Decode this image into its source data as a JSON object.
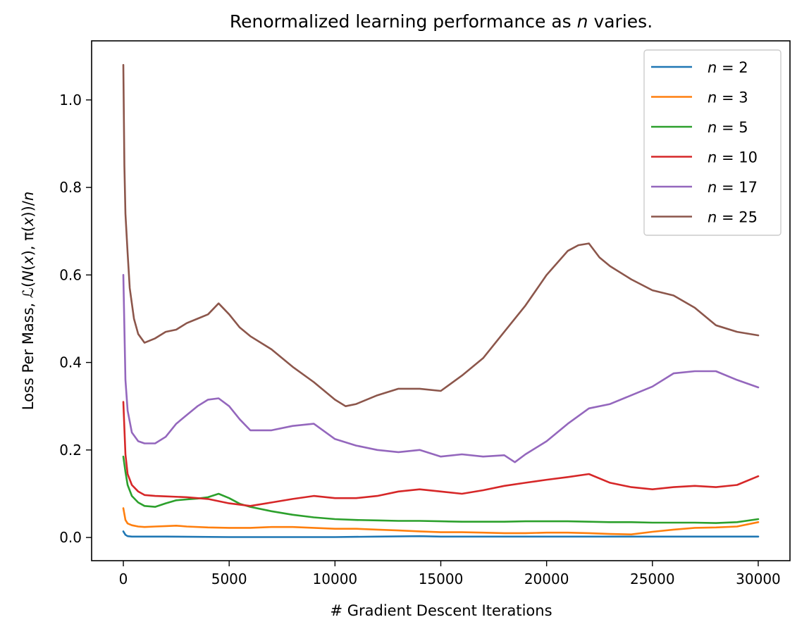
{
  "chart_data": {
    "type": "line",
    "title": "Renormalized learning performance as n varies.",
    "xlabel": "# Gradient Descent Iterations",
    "ylabel": "Loss Per Mass, ℒ(N(x), π(x))/n",
    "xlim": [
      -1500,
      31500
    ],
    "ylim": [
      -0.053,
      1.135
    ],
    "xticks": [
      0,
      5000,
      10000,
      15000,
      20000,
      25000,
      30000
    ],
    "xtick_labels": [
      "0",
      "5000",
      "10000",
      "15000",
      "20000",
      "25000",
      "30000"
    ],
    "yticks": [
      0.0,
      0.2,
      0.4,
      0.6,
      0.8,
      1.0
    ],
    "ytick_labels": [
      "0.0",
      "0.2",
      "0.4",
      "0.6",
      "0.8",
      "1.0"
    ],
    "grid": false,
    "legend_position": "top-right",
    "series": [
      {
        "name": "n = 2",
        "color": "#1f77b4",
        "x": [
          0,
          100,
          200,
          400,
          1000,
          2000,
          5000,
          10000,
          12000,
          14000,
          15000,
          20000,
          25000,
          28000,
          30000
        ],
        "y": [
          0.014,
          0.006,
          0.003,
          0.002,
          0.002,
          0.002,
          0.001,
          0.001,
          0.002,
          0.003,
          0.002,
          0.002,
          0.002,
          0.002,
          0.002
        ]
      },
      {
        "name": "n = 3",
        "color": "#ff7f0e",
        "x": [
          0,
          100,
          200,
          400,
          700,
          1000,
          1500,
          2000,
          2500,
          3000,
          4000,
          5000,
          6000,
          7000,
          8000,
          9000,
          10000,
          11000,
          12000,
          13000,
          14000,
          15000,
          16000,
          17000,
          18000,
          19000,
          20000,
          21000,
          22000,
          23000,
          24000,
          25000,
          26000,
          27000,
          28000,
          29000,
          30000
        ],
        "y": [
          0.067,
          0.04,
          0.032,
          0.028,
          0.025,
          0.024,
          0.025,
          0.026,
          0.027,
          0.025,
          0.023,
          0.022,
          0.022,
          0.024,
          0.024,
          0.022,
          0.02,
          0.02,
          0.018,
          0.016,
          0.014,
          0.012,
          0.012,
          0.011,
          0.01,
          0.01,
          0.011,
          0.011,
          0.01,
          0.008,
          0.007,
          0.013,
          0.018,
          0.022,
          0.023,
          0.025,
          0.035
        ]
      },
      {
        "name": "n = 5",
        "color": "#2ca02c",
        "x": [
          0,
          100,
          200,
          400,
          700,
          1000,
          1500,
          2000,
          2500,
          3000,
          3500,
          4000,
          4500,
          5000,
          5500,
          6000,
          7000,
          8000,
          9000,
          10000,
          11000,
          12000,
          13000,
          14000,
          15000,
          16000,
          17000,
          18000,
          19000,
          20000,
          21000,
          22000,
          23000,
          24000,
          25000,
          26000,
          27000,
          28000,
          29000,
          30000
        ],
        "y": [
          0.185,
          0.15,
          0.12,
          0.095,
          0.08,
          0.072,
          0.07,
          0.078,
          0.085,
          0.087,
          0.089,
          0.092,
          0.1,
          0.09,
          0.077,
          0.07,
          0.06,
          0.052,
          0.046,
          0.042,
          0.04,
          0.039,
          0.038,
          0.038,
          0.037,
          0.036,
          0.036,
          0.036,
          0.037,
          0.037,
          0.037,
          0.036,
          0.035,
          0.035,
          0.034,
          0.034,
          0.034,
          0.033,
          0.035,
          0.042
        ]
      },
      {
        "name": "n = 10",
        "color": "#d62728",
        "x": [
          0,
          100,
          200,
          400,
          700,
          1000,
          1500,
          2000,
          3000,
          4000,
          5000,
          6000,
          7000,
          8000,
          9000,
          10000,
          11000,
          12000,
          13000,
          14000,
          15000,
          16000,
          17000,
          18000,
          19000,
          20000,
          21000,
          22000,
          23000,
          24000,
          25000,
          26000,
          27000,
          28000,
          29000,
          30000
        ],
        "y": [
          0.31,
          0.19,
          0.145,
          0.12,
          0.105,
          0.097,
          0.095,
          0.094,
          0.092,
          0.088,
          0.078,
          0.072,
          0.08,
          0.088,
          0.095,
          0.09,
          0.09,
          0.095,
          0.105,
          0.11,
          0.105,
          0.1,
          0.108,
          0.118,
          0.125,
          0.132,
          0.138,
          0.145,
          0.125,
          0.115,
          0.11,
          0.115,
          0.118,
          0.115,
          0.12,
          0.14
        ]
      },
      {
        "name": "n = 17",
        "color": "#9467bd",
        "x": [
          0,
          100,
          200,
          400,
          700,
          1000,
          1500,
          2000,
          2500,
          3000,
          3500,
          4000,
          4500,
          5000,
          5500,
          6000,
          7000,
          8000,
          9000,
          10000,
          11000,
          12000,
          13000,
          14000,
          15000,
          16000,
          17000,
          18000,
          18500,
          19000,
          20000,
          21000,
          22000,
          23000,
          24000,
          25000,
          26000,
          27000,
          28000,
          29000,
          30000
        ],
        "y": [
          0.6,
          0.36,
          0.29,
          0.24,
          0.22,
          0.215,
          0.215,
          0.23,
          0.26,
          0.28,
          0.3,
          0.315,
          0.318,
          0.3,
          0.27,
          0.245,
          0.245,
          0.255,
          0.26,
          0.225,
          0.21,
          0.2,
          0.195,
          0.2,
          0.185,
          0.19,
          0.185,
          0.188,
          0.172,
          0.19,
          0.22,
          0.26,
          0.295,
          0.305,
          0.325,
          0.345,
          0.375,
          0.38,
          0.38,
          0.36,
          0.343
        ]
      },
      {
        "name": "n = 25",
        "color": "#8c564b",
        "x": [
          0,
          50,
          100,
          200,
          300,
          500,
          700,
          1000,
          1500,
          2000,
          2500,
          3000,
          3500,
          4000,
          4500,
          5000,
          5500,
          6000,
          7000,
          8000,
          9000,
          10000,
          10500,
          11000,
          12000,
          13000,
          14000,
          15000,
          16000,
          17000,
          18000,
          19000,
          20000,
          21000,
          21500,
          22000,
          22500,
          23000,
          24000,
          25000,
          26000,
          27000,
          28000,
          29000,
          30000
        ],
        "y": [
          1.08,
          0.85,
          0.74,
          0.65,
          0.57,
          0.5,
          0.465,
          0.445,
          0.455,
          0.47,
          0.475,
          0.49,
          0.5,
          0.51,
          0.535,
          0.51,
          0.48,
          0.46,
          0.43,
          0.39,
          0.355,
          0.315,
          0.3,
          0.305,
          0.325,
          0.34,
          0.34,
          0.335,
          0.37,
          0.41,
          0.47,
          0.53,
          0.6,
          0.655,
          0.668,
          0.672,
          0.64,
          0.62,
          0.59,
          0.565,
          0.553,
          0.525,
          0.485,
          0.47,
          0.462
        ]
      }
    ]
  }
}
